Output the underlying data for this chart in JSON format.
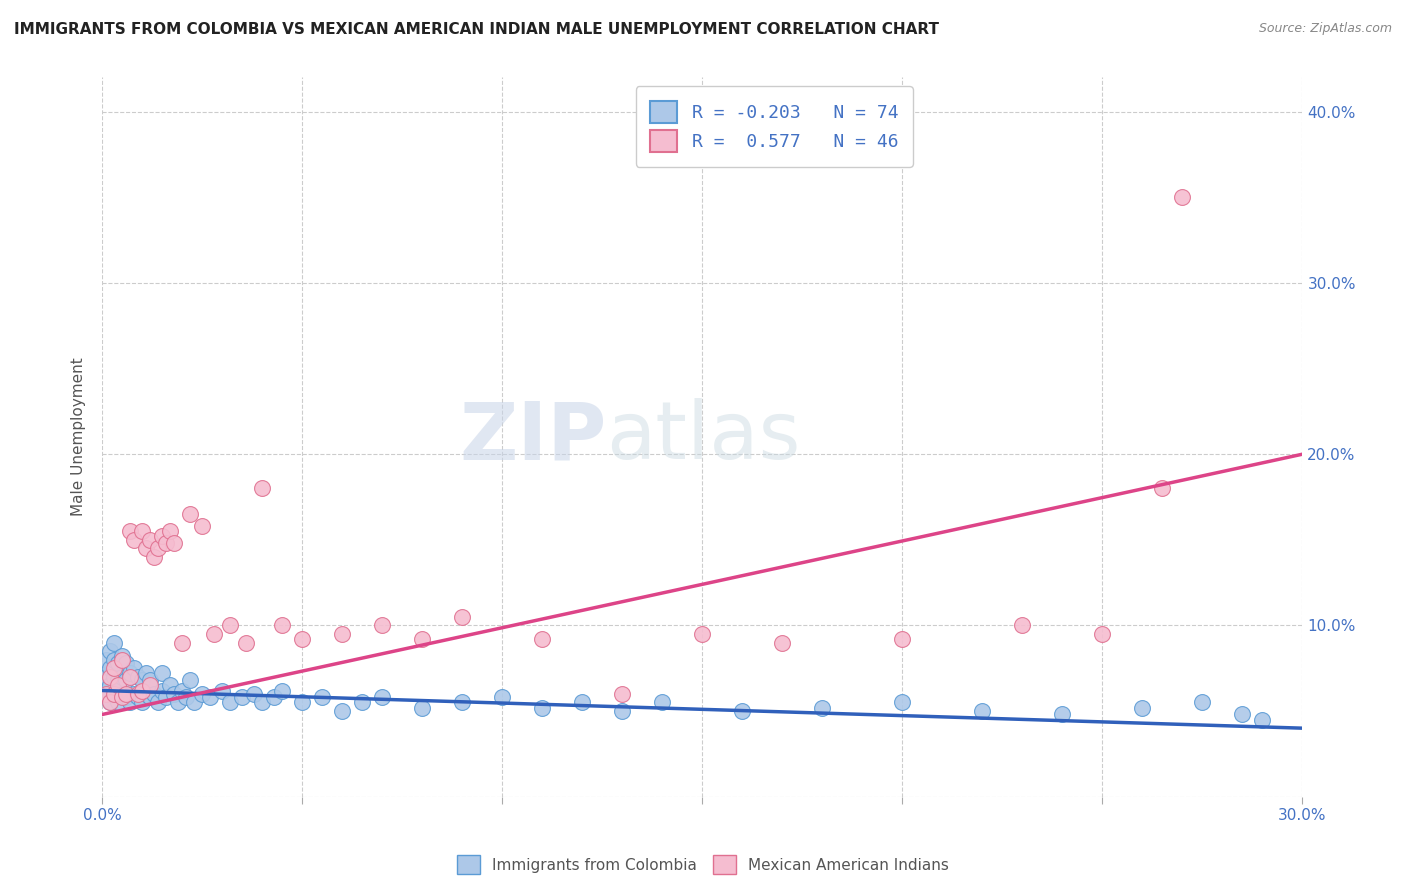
{
  "title": "IMMIGRANTS FROM COLOMBIA VS MEXICAN AMERICAN INDIAN MALE UNEMPLOYMENT CORRELATION CHART",
  "source": "Source: ZipAtlas.com",
  "ylabel": "Male Unemployment",
  "xlim": [
    0.0,
    0.3
  ],
  "ylim": [
    0.0,
    0.42
  ],
  "xtick_positions": [
    0.0,
    0.05,
    0.1,
    0.15,
    0.2,
    0.25,
    0.3
  ],
  "xticklabels": [
    "0.0%",
    "",
    "",
    "",
    "",
    "",
    "30.0%"
  ],
  "ytick_positions": [
    0.0,
    0.1,
    0.2,
    0.3,
    0.4
  ],
  "yticklabels": [
    "",
    "10.0%",
    "20.0%",
    "30.0%",
    "40.0%"
  ],
  "blue_R": -0.203,
  "blue_N": 74,
  "pink_R": 0.577,
  "pink_N": 46,
  "blue_color": "#adc8e8",
  "blue_edge": "#5b9bd5",
  "pink_color": "#f5bdd0",
  "pink_edge": "#e07090",
  "blue_line_color": "#3060bb",
  "pink_line_color": "#dd4488",
  "legend_blue_label": "Immigrants from Colombia",
  "legend_pink_label": "Mexican American Indians",
  "watermark_zip": "ZIP",
  "watermark_atlas": "atlas",
  "background_color": "#ffffff",
  "title_fontsize": 11,
  "tick_label_color": "#4472c4",
  "blue_trend_start_y": 0.062,
  "blue_trend_end_y": 0.04,
  "pink_trend_start_y": 0.048,
  "pink_trend_end_y": 0.2,
  "blue_scatter_x": [
    0.001,
    0.001,
    0.001,
    0.002,
    0.002,
    0.002,
    0.002,
    0.003,
    0.003,
    0.003,
    0.003,
    0.004,
    0.004,
    0.004,
    0.005,
    0.005,
    0.005,
    0.006,
    0.006,
    0.006,
    0.007,
    0.007,
    0.008,
    0.008,
    0.009,
    0.009,
    0.01,
    0.01,
    0.011,
    0.011,
    0.012,
    0.012,
    0.013,
    0.014,
    0.015,
    0.015,
    0.016,
    0.017,
    0.018,
    0.019,
    0.02,
    0.021,
    0.022,
    0.023,
    0.025,
    0.027,
    0.03,
    0.032,
    0.035,
    0.038,
    0.04,
    0.043,
    0.045,
    0.05,
    0.055,
    0.06,
    0.065,
    0.07,
    0.08,
    0.09,
    0.1,
    0.11,
    0.12,
    0.13,
    0.14,
    0.16,
    0.18,
    0.2,
    0.22,
    0.24,
    0.26,
    0.275,
    0.285,
    0.29
  ],
  "blue_scatter_y": [
    0.06,
    0.07,
    0.08,
    0.055,
    0.065,
    0.075,
    0.085,
    0.06,
    0.07,
    0.08,
    0.09,
    0.055,
    0.068,
    0.078,
    0.06,
    0.07,
    0.082,
    0.058,
    0.068,
    0.078,
    0.055,
    0.072,
    0.06,
    0.075,
    0.058,
    0.07,
    0.055,
    0.068,
    0.06,
    0.072,
    0.058,
    0.068,
    0.06,
    0.055,
    0.062,
    0.072,
    0.058,
    0.065,
    0.06,
    0.055,
    0.062,
    0.058,
    0.068,
    0.055,
    0.06,
    0.058,
    0.062,
    0.055,
    0.058,
    0.06,
    0.055,
    0.058,
    0.062,
    0.055,
    0.058,
    0.05,
    0.055,
    0.058,
    0.052,
    0.055,
    0.058,
    0.052,
    0.055,
    0.05,
    0.055,
    0.05,
    0.052,
    0.055,
    0.05,
    0.048,
    0.052,
    0.055,
    0.048,
    0.045
  ],
  "pink_scatter_x": [
    0.001,
    0.002,
    0.002,
    0.003,
    0.003,
    0.004,
    0.005,
    0.005,
    0.006,
    0.007,
    0.007,
    0.008,
    0.009,
    0.01,
    0.01,
    0.011,
    0.012,
    0.012,
    0.013,
    0.014,
    0.015,
    0.016,
    0.017,
    0.018,
    0.02,
    0.022,
    0.025,
    0.028,
    0.032,
    0.036,
    0.04,
    0.045,
    0.05,
    0.06,
    0.07,
    0.08,
    0.09,
    0.11,
    0.13,
    0.15,
    0.17,
    0.2,
    0.23,
    0.25,
    0.265,
    0.27
  ],
  "pink_scatter_y": [
    0.06,
    0.055,
    0.07,
    0.06,
    0.075,
    0.065,
    0.058,
    0.08,
    0.06,
    0.07,
    0.155,
    0.15,
    0.06,
    0.062,
    0.155,
    0.145,
    0.15,
    0.065,
    0.14,
    0.145,
    0.152,
    0.148,
    0.155,
    0.148,
    0.09,
    0.165,
    0.158,
    0.095,
    0.1,
    0.09,
    0.18,
    0.1,
    0.092,
    0.095,
    0.1,
    0.092,
    0.105,
    0.092,
    0.06,
    0.095,
    0.09,
    0.092,
    0.1,
    0.095,
    0.18,
    0.35
  ]
}
